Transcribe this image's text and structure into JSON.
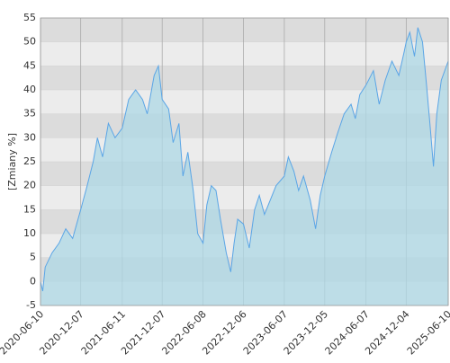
{
  "chart_data": {
    "type": "area",
    "y_label": "[Zmiany %]",
    "x": [
      "2020-06-10",
      "2020-06-20",
      "2020-07-01",
      "2020-08-01",
      "2020-09-01",
      "2020-10-01",
      "2020-11-01",
      "2020-12-07",
      "2021-01-05",
      "2021-02-01",
      "2021-02-20",
      "2021-03-15",
      "2021-04-10",
      "2021-05-10",
      "2021-06-11",
      "2021-07-10",
      "2021-08-10",
      "2021-09-10",
      "2021-10-01",
      "2021-11-01",
      "2021-11-20",
      "2021-12-07",
      "2022-01-05",
      "2022-01-25",
      "2022-02-20",
      "2022-03-10",
      "2022-04-01",
      "2022-04-25",
      "2022-05-15",
      "2022-06-08",
      "2022-06-25",
      "2022-07-15",
      "2022-08-05",
      "2022-08-25",
      "2022-09-20",
      "2022-10-10",
      "2022-10-25",
      "2022-11-10",
      "2022-12-06",
      "2023-01-01",
      "2023-01-25",
      "2023-02-15",
      "2023-03-10",
      "2023-04-05",
      "2023-05-01",
      "2023-06-07",
      "2023-06-25",
      "2023-07-20",
      "2023-08-10",
      "2023-09-01",
      "2023-10-01",
      "2023-10-25",
      "2023-11-15",
      "2023-12-05",
      "2024-01-05",
      "2024-02-01",
      "2024-03-01",
      "2024-04-01",
      "2024-04-20",
      "2024-05-10",
      "2024-06-07",
      "2024-07-10",
      "2024-08-05",
      "2024-09-01",
      "2024-10-01",
      "2024-11-01",
      "2024-11-25",
      "2024-12-04",
      "2024-12-20",
      "2025-01-10",
      "2025-01-25",
      "2025-02-15",
      "2025-03-05",
      "2025-03-20",
      "2025-04-05",
      "2025-04-20",
      "2025-05-10",
      "2025-06-10"
    ],
    "values": [
      0,
      -2,
      3,
      6,
      8,
      11,
      9,
      15,
      20,
      25,
      30,
      26,
      33,
      30,
      32,
      38,
      40,
      38,
      35,
      43,
      45,
      38,
      36,
      29,
      33,
      22,
      27,
      19,
      10,
      8,
      16,
      20,
      19,
      13,
      6,
      2,
      8,
      13,
      12,
      7,
      15,
      18,
      14,
      17,
      20,
      22,
      26,
      23,
      19,
      22,
      17,
      11,
      18,
      22,
      27,
      31,
      35,
      37,
      34,
      39,
      41,
      44,
      37,
      42,
      46,
      43,
      48,
      50,
      52,
      47,
      53,
      50,
      41,
      33,
      24,
      35,
      42,
      46
    ],
    "line_color": "#5aa5e6",
    "fill_color": "#add8e6",
    "xlim": [
      "2020-06-10",
      "2025-06-10"
    ],
    "xticks": [
      "2020-06-10",
      "2020-12-07",
      "2021-06-11",
      "2021-12-07",
      "2022-06-08",
      "2022-12-06",
      "2023-06-07",
      "2023-12-05",
      "2024-06-07",
      "2024-12-04",
      "2025-06-10"
    ],
    "ylim": [
      -5,
      55
    ],
    "yticks": [
      -5,
      0,
      5,
      10,
      15,
      20,
      25,
      30,
      35,
      40,
      45,
      50,
      55
    ],
    "grid": true
  }
}
